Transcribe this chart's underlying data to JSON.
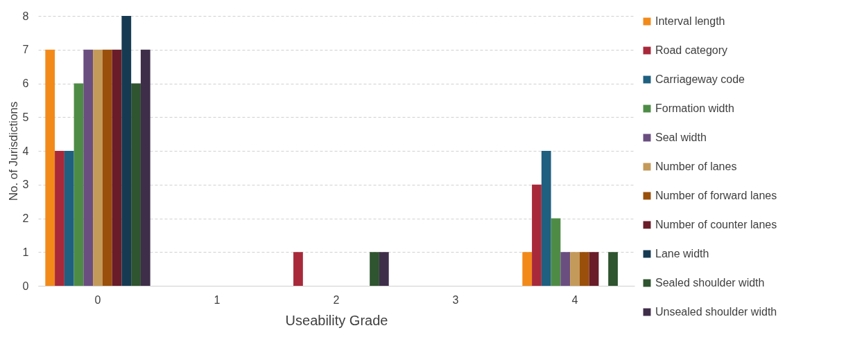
{
  "chart_data": {
    "type": "bar",
    "xlabel": "Useability Grade",
    "ylabel": "No. of Jurisdictions",
    "categories": [
      "0",
      "1",
      "2",
      "3",
      "4"
    ],
    "ylim": [
      0,
      8
    ],
    "yticks": [
      0,
      1,
      2,
      3,
      4,
      5,
      6,
      7,
      8
    ],
    "grid": "y",
    "legend": "right",
    "series": [
      {
        "name": "Interval length",
        "color": "#f28a1a",
        "values": [
          7,
          0,
          0,
          0,
          1
        ]
      },
      {
        "name": "Road category",
        "color": "#a8293a",
        "values": [
          4,
          0,
          1,
          0,
          3
        ]
      },
      {
        "name": "Carriageway code",
        "color": "#1f5f80",
        "values": [
          4,
          0,
          0,
          0,
          4
        ]
      },
      {
        "name": "Formation width",
        "color": "#4e8c46",
        "values": [
          6,
          0,
          0,
          0,
          2
        ]
      },
      {
        "name": "Seal width",
        "color": "#6a4e80",
        "values": [
          7,
          0,
          0,
          0,
          1
        ]
      },
      {
        "name": "Number of lanes",
        "color": "#c49a5a",
        "values": [
          7,
          0,
          0,
          0,
          1
        ]
      },
      {
        "name": "Number of forward lanes",
        "color": "#9a4f0a",
        "values": [
          7,
          0,
          0,
          0,
          1
        ]
      },
      {
        "name": "Number of counter lanes",
        "color": "#6a1c28",
        "values": [
          7,
          0,
          0,
          0,
          1
        ]
      },
      {
        "name": "Lane width",
        "color": "#163a52",
        "values": [
          8,
          0,
          0,
          0,
          0
        ]
      },
      {
        "name": "Sealed shoulder width",
        "color": "#2f5430",
        "values": [
          6,
          0,
          1,
          0,
          1
        ]
      },
      {
        "name": "Unsealed shoulder width",
        "color": "#3f2e4a",
        "values": [
          7,
          0,
          1,
          0,
          0
        ]
      }
    ]
  }
}
